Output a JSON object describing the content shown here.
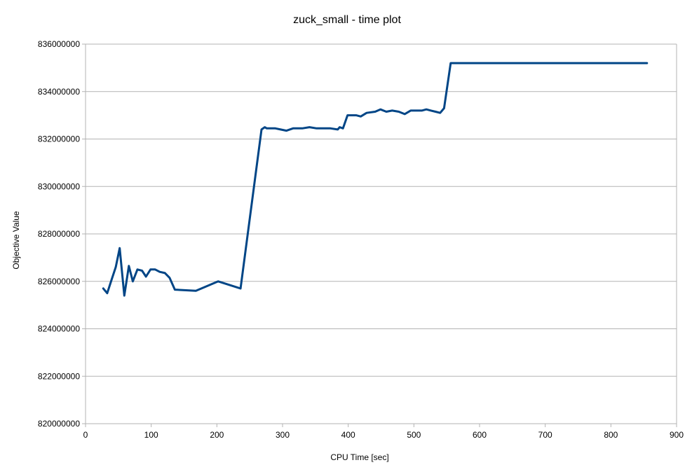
{
  "chart_data": {
    "type": "line",
    "title": "zuck_small - time plot",
    "xlabel": "CPU Time [sec]",
    "ylabel": "Objective Value",
    "xlim": [
      0,
      900
    ],
    "ylim": [
      820000000,
      836000000
    ],
    "x_ticks": [
      "0",
      "100",
      "200",
      "300",
      "400",
      "500",
      "600",
      "700",
      "800",
      "900"
    ],
    "y_ticks": [
      "820000000",
      "822000000",
      "824000000",
      "826000000",
      "828000000",
      "830000000",
      "832000000",
      "834000000",
      "836000000"
    ],
    "grid": true,
    "legend": "none",
    "series": [
      {
        "color": "#004586",
        "x": [
          27,
          33,
          40,
          46,
          52,
          59,
          66,
          72,
          79,
          86,
          92,
          99,
          106,
          113,
          121,
          128,
          136,
          168,
          202,
          236,
          268,
          273,
          276,
          281,
          289,
          297,
          306,
          316,
          330,
          341,
          352,
          363,
          373,
          384,
          387,
          392,
          399,
          412,
          419,
          428,
          441,
          449,
          458,
          467,
          477,
          486,
          495,
          503,
          512,
          519,
          526,
          533,
          540,
          546,
          556,
          600,
          650,
          700,
          750,
          800,
          855
        ],
        "y": [
          825700000,
          825500000,
          826100000,
          826600000,
          827400000,
          825400000,
          826650000,
          826000000,
          826500000,
          826450000,
          826200000,
          826500000,
          826500000,
          826400000,
          826350000,
          826150000,
          825650000,
          825600000,
          826000000,
          825700000,
          832400000,
          832500000,
          832450000,
          832450000,
          832450000,
          832400000,
          832350000,
          832450000,
          832450000,
          832500000,
          832450000,
          832450000,
          832450000,
          832400000,
          832500000,
          832450000,
          833000000,
          833000000,
          832950000,
          833100000,
          833150000,
          833250000,
          833150000,
          833200000,
          833150000,
          833050000,
          833200000,
          833200000,
          833200000,
          833250000,
          833200000,
          833150000,
          833100000,
          833300000,
          835200000,
          835200000,
          835200000,
          835200000,
          835200000,
          835200000,
          835200000
        ]
      }
    ]
  }
}
